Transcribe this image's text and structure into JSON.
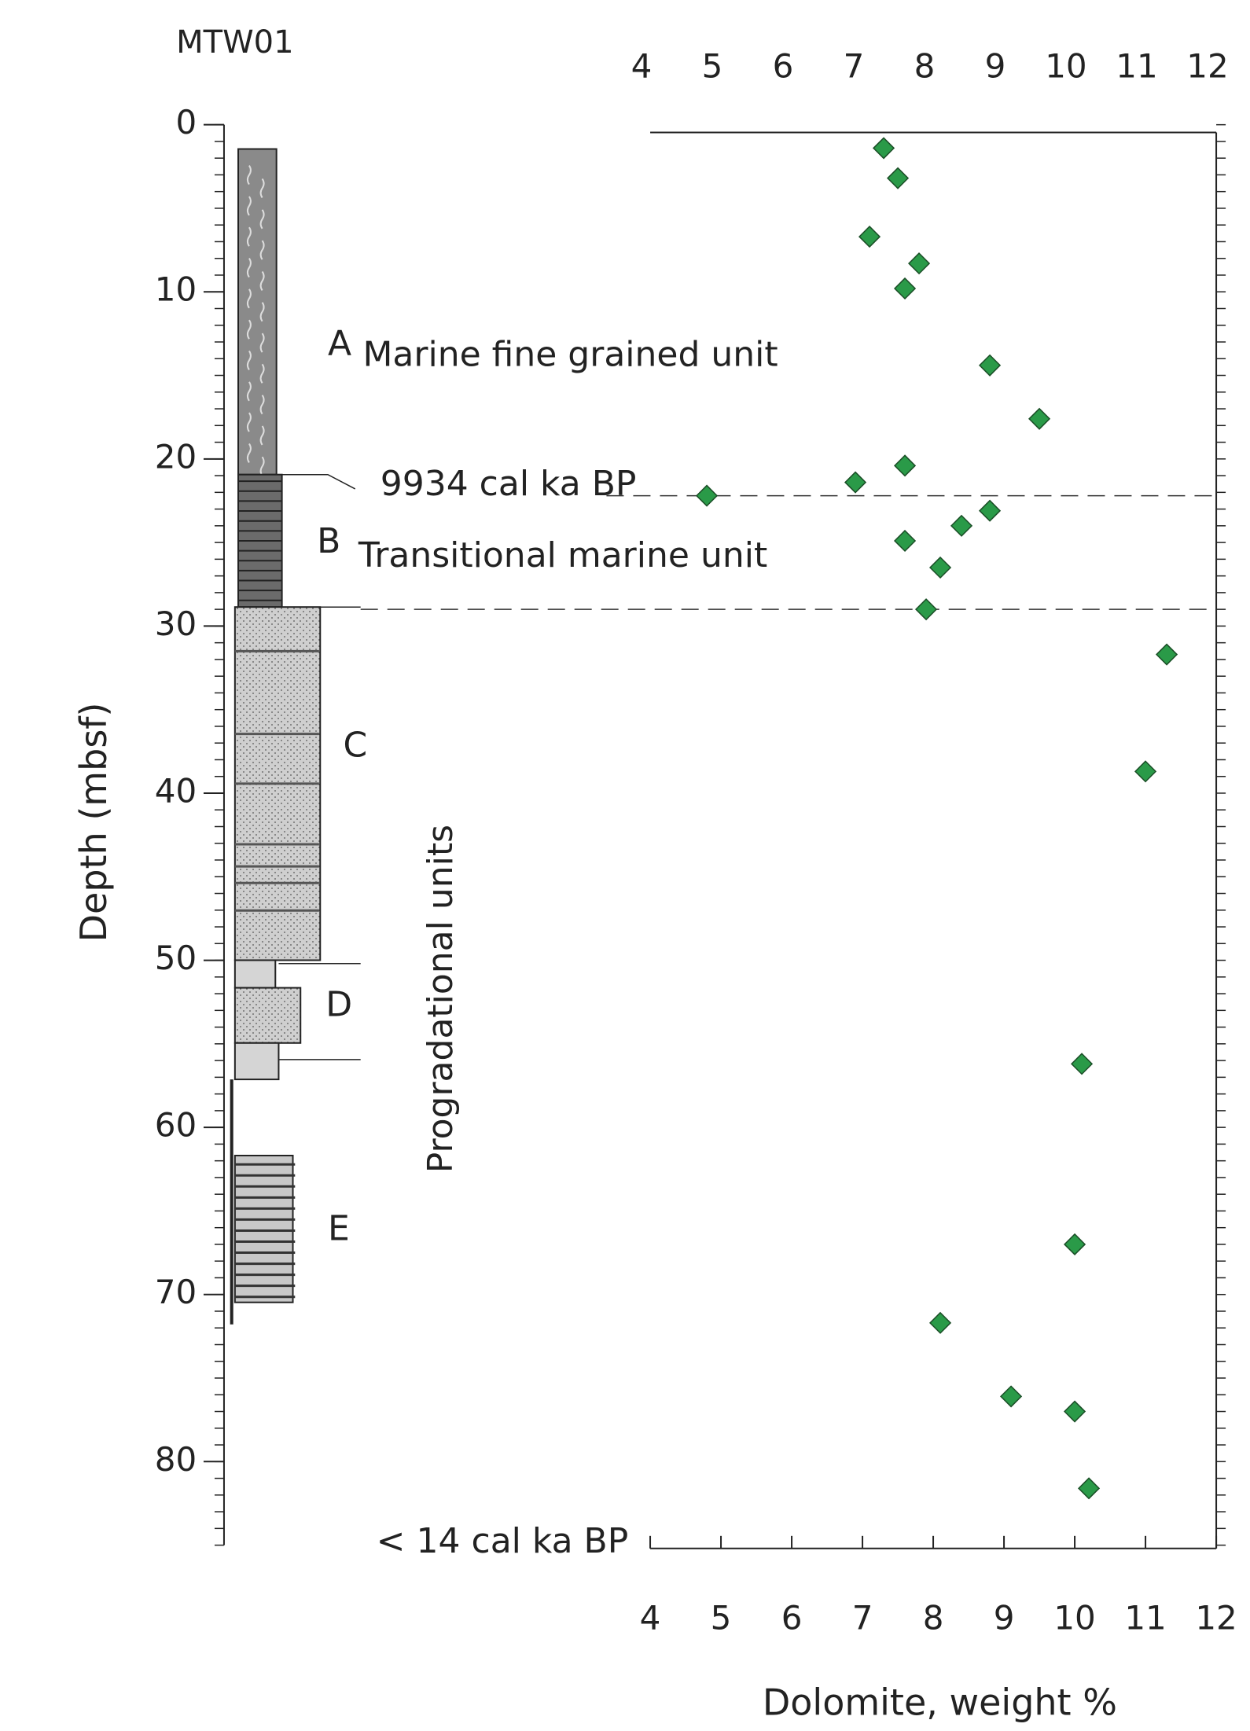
{
  "chart_data": {
    "type": "scatter",
    "title": "MTW01",
    "x_label": "Dolomite, weight %",
    "y_label": "Depth (mbsf)",
    "x": [
      7.3,
      7.5,
      7.1,
      7.8,
      7.6,
      8.8,
      9.5,
      7.6,
      6.9,
      4.8,
      8.8,
      8.4,
      7.6,
      8.1,
      7.9,
      11.3,
      11.0,
      10.1,
      10.0,
      8.1,
      9.1,
      10.0,
      10.2
    ],
    "y": [
      1.4,
      3.2,
      6.7,
      8.3,
      9.8,
      14.4,
      17.6,
      20.4,
      21.4,
      22.2,
      23.1,
      24.0,
      24.9,
      26.5,
      29.0,
      31.7,
      38.7,
      56.2,
      67.0,
      71.7,
      76.1,
      77.0,
      81.6
    ],
    "color": "#2a9a48",
    "xlim": [
      4,
      12
    ],
    "xticks": [
      4,
      5,
      6,
      7,
      8,
      9,
      10,
      11,
      12
    ],
    "ylim": [
      0,
      85
    ],
    "yticks": [
      0,
      10,
      20,
      30,
      40,
      50,
      60,
      70,
      80
    ],
    "yminorticks": [
      0,
      1,
      2,
      3,
      4,
      5,
      6,
      7,
      8,
      9,
      10,
      11,
      12,
      13,
      14,
      15,
      16,
      17,
      18,
      19,
      20,
      21,
      22,
      23,
      24,
      25,
      26,
      27,
      28,
      29,
      30,
      31,
      32,
      33,
      34,
      35,
      36,
      37,
      38,
      39,
      40,
      41,
      42,
      43,
      44,
      45,
      46,
      47,
      48,
      49,
      50,
      51,
      52,
      53,
      54,
      55,
      56,
      57,
      58,
      59,
      60,
      61,
      62,
      63,
      64,
      65,
      66,
      67,
      68,
      69,
      70,
      71,
      72,
      73,
      74,
      75,
      76,
      77,
      78,
      79,
      80,
      81,
      82,
      83,
      84,
      85
    ],
    "y_inverted": true,
    "hlines": [
      22.2,
      29.0
    ],
    "annotations": [
      "A",
      "Marine fine grained unit",
      "9934 cal ka BP",
      "B",
      "Transitional marine unit",
      "C",
      "D",
      "E",
      "Progradational units",
      "< 14 cal ka BP"
    ]
  }
}
